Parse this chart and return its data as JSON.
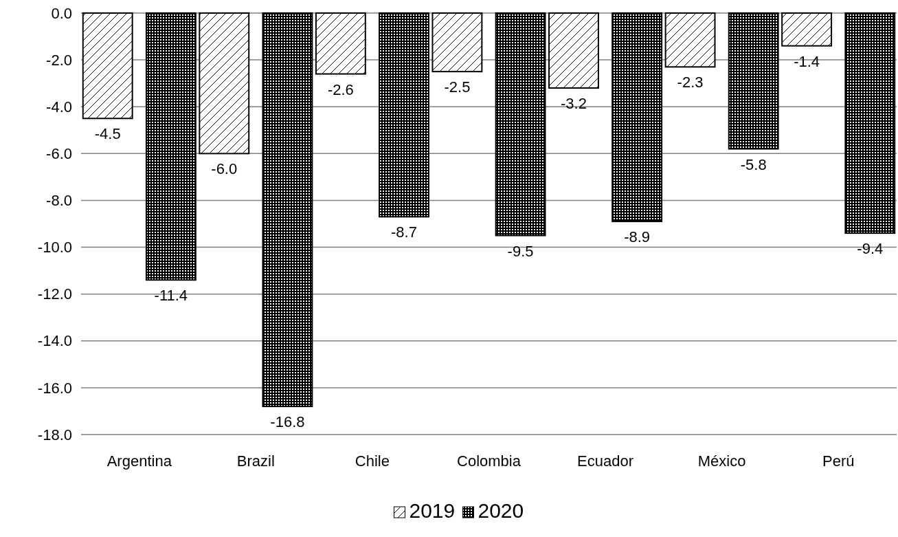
{
  "chart_data": {
    "type": "bar",
    "categories": [
      "Argentina",
      "Brazil",
      "Chile",
      "Colombia",
      "Ecuador",
      "México",
      "Perú"
    ],
    "series": [
      {
        "name": "2019",
        "color": "#000000",
        "values": [
          -4.5,
          -6.0,
          -2.6,
          -2.5,
          -3.2,
          -2.3,
          -1.4
        ],
        "value_labels": [
          "-4.5",
          "-6.0",
          "-2.6",
          "-2.5",
          "-3.2",
          "-2.3",
          "-1.4"
        ]
      },
      {
        "name": "2020",
        "color": "#000000",
        "values": [
          -11.4,
          -16.8,
          -8.7,
          -9.5,
          -8.9,
          -5.8,
          -9.4
        ],
        "value_labels": [
          "-11.4",
          "-16.8",
          "-8.7",
          "-9.5",
          "-8.9",
          "-5.8",
          "-9.4"
        ]
      }
    ],
    "ylim": [
      -18,
      0
    ],
    "yticks": [
      {
        "value": -18,
        "label": "-18.0"
      },
      {
        "value": -16,
        "label": "-16.0"
      },
      {
        "value": -14,
        "label": "-14.0"
      },
      {
        "value": -12,
        "label": "-12.0"
      },
      {
        "value": -10,
        "label": "-10.0"
      },
      {
        "value": -8,
        "label": "-8.0"
      },
      {
        "value": -6,
        "label": "-6.0"
      },
      {
        "value": -4,
        "label": "-4.0"
      },
      {
        "value": -2,
        "label": "-2.0"
      },
      {
        "value": 0,
        "label": "0.0"
      }
    ],
    "grid": "y",
    "legend": "bottom"
  }
}
